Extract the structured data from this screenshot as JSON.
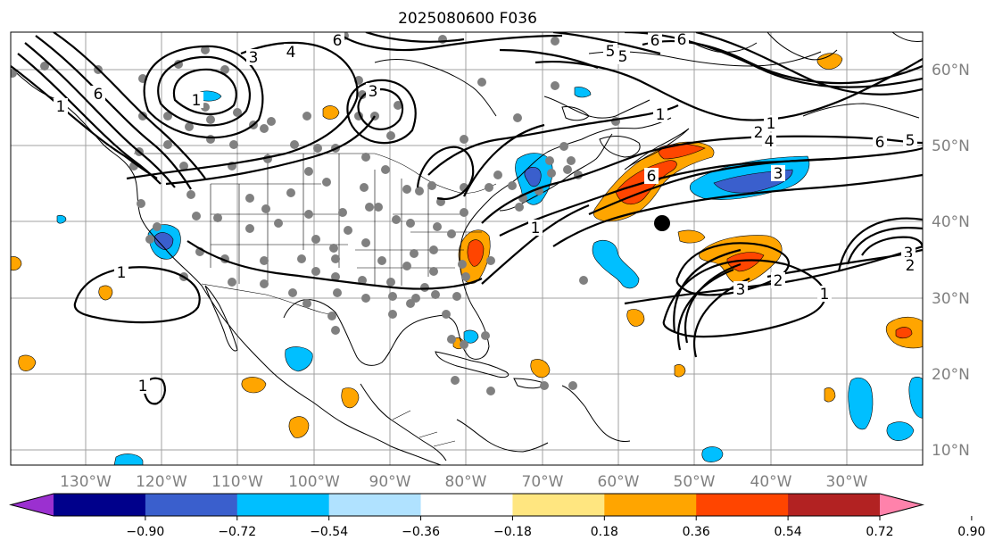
{
  "title": "2025080600 F036",
  "lat_labels": [
    "60°N",
    "50°N",
    "40°N",
    "30°N",
    "20°N",
    "10°N"
  ],
  "lon_labels": [
    "130°W",
    "120°W",
    "110°W",
    "100°W",
    "90°W",
    "80°W",
    "70°W",
    "60°W",
    "50°W",
    "40°W",
    "30°W"
  ],
  "colorbar": {
    "ticks": [
      "−0.90",
      "−0.72",
      "−0.54",
      "−0.36",
      "−0.18",
      "0.18",
      "0.36",
      "0.54",
      "0.72",
      "0.90"
    ],
    "colors": [
      "#9b30d0",
      "#00008b",
      "#3a5fcd",
      "#00bfff",
      "#b0e2ff",
      "#ffffff",
      "#ffe680",
      "#ffa500",
      "#ff4500",
      "#b22222",
      "#ff82ab"
    ]
  },
  "contour_labels": [
    "6",
    "3",
    "4",
    "6",
    "5",
    "6",
    "5",
    "6",
    "1",
    "3",
    "1",
    "1",
    "2",
    "4",
    "6",
    "5",
    "3",
    "6",
    "1",
    "1",
    "3",
    "2",
    "1",
    "3",
    "2",
    "1",
    "1"
  ],
  "colors": {
    "station_dot": "#808080",
    "center_marker": "#000000",
    "positive_fill": "#ffa500",
    "strong_positive_fill": "#ff4500",
    "negative_fill": "#00bfff",
    "strong_negative_fill": "#3a5fcd"
  }
}
